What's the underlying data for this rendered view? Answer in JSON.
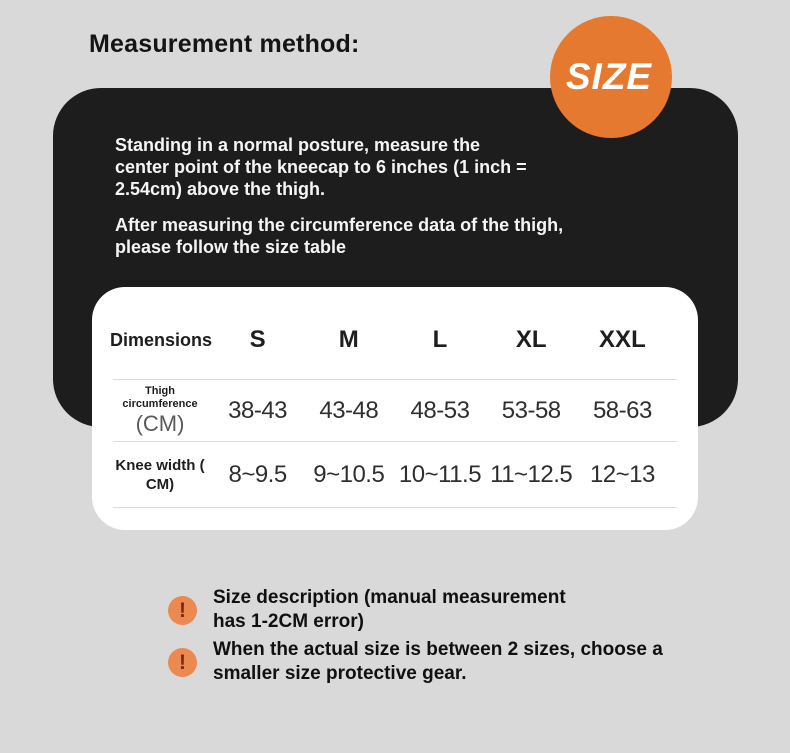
{
  "page": {
    "title": "Measurement method:",
    "background_color": "#d9d9d9"
  },
  "size_badge": {
    "label": "SIZE",
    "background_color": "#e5792f",
    "text_color": "#ffffff"
  },
  "instructions": {
    "panel_color": "#1d1d1d",
    "text_color": "#f5f5f5",
    "paragraphs": [
      {
        "lines": [
          "Standing in a normal posture, measure the",
          "center point of the kneecap to 6 inches (1 inch =",
          "2.54cm) above the thigh."
        ]
      },
      {
        "lines": [
          "After measuring the circumference data of the thigh,",
          "please follow the size table"
        ]
      }
    ]
  },
  "size_table": {
    "header": {
      "dimensions_label": "Dimensions",
      "sizes": [
        "S",
        "M",
        "L",
        "XL",
        "XXL"
      ]
    },
    "rows": [
      {
        "label_lines": [
          "Thigh",
          "circumference"
        ],
        "unit": "(CM)",
        "values": [
          "38-43",
          "43-48",
          "48-53",
          "53-58",
          "58-63"
        ]
      },
      {
        "label_lines": [
          "Knee width (",
          "CM)"
        ],
        "values": [
          "8~9.5",
          "9~10.5",
          "10~11.5",
          "11~12.5",
          "12~13"
        ]
      }
    ]
  },
  "notes": [
    {
      "icon": "exclamation-icon",
      "icon_glyph": "!",
      "lines": [
        "Size description (manual measurement",
        "has 1-2CM error)"
      ]
    },
    {
      "icon": "exclamation-icon",
      "icon_glyph": "!",
      "lines": [
        "When the actual size is between 2 sizes, choose a",
        "smaller size protective gear."
      ]
    }
  ],
  "colors": {
    "badge_orange": "#e5792f",
    "note_icon_orange": "#eb8950",
    "note_icon_mark": "#7b2a12",
    "panel_black": "#1d1d1d",
    "divider_gray": "#dcdcdc"
  }
}
